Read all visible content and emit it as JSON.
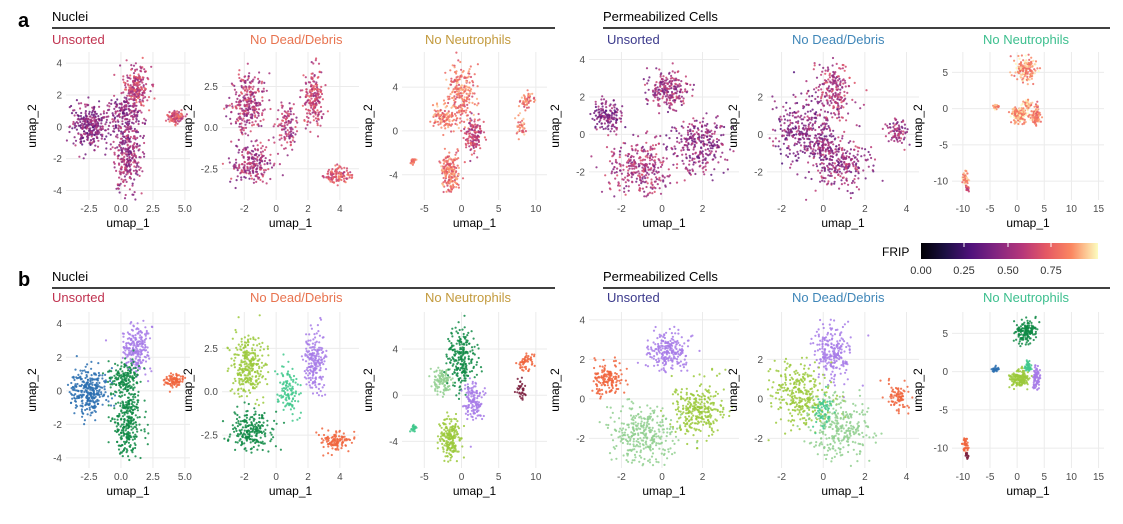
{
  "panel_labels": [
    "a",
    "b"
  ],
  "groups": {
    "left": "Nuclei",
    "right": "Permeabilized Cells"
  },
  "subplot_titles": [
    {
      "text": "Unsorted",
      "color": "#c0324f"
    },
    {
      "text": "No Dead/Debris",
      "color": "#e8734f"
    },
    {
      "text": "No Neutrophils",
      "color": "#c39a3d"
    },
    {
      "text": "Unsorted",
      "color": "#3c3a8c"
    },
    {
      "text": "No Dead/Debris",
      "color": "#3f86b8"
    },
    {
      "text": "No Neutrophils",
      "color": "#3cbf8e"
    }
  ],
  "legend": {
    "title": "FRIP",
    "ticks": [
      "0.00",
      "0.25",
      "0.50",
      "0.75"
    ],
    "range": [
      0,
      0.9
    ],
    "colormap": "magma"
  },
  "cluster_colors": [
    "#2a6fb0",
    "#0f8a45",
    "#a77be8",
    "#f0643c",
    "#9bc93b",
    "#90cf8f",
    "#3fc88c",
    "#7a1f3d"
  ],
  "chart_data": [
    {
      "type": "scatter",
      "row": "a",
      "group": "Nuclei",
      "title": "Unsorted",
      "xlabel": "umap_1",
      "ylabel": "umap_2",
      "xlim": [
        -4.3,
        5.4
      ],
      "ylim": [
        -4.6,
        4.7
      ],
      "xticks": [
        -2.5,
        0,
        2.5,
        5
      ],
      "xtick_labels": [
        "-2.5",
        "0.0",
        "2.5",
        "5.0"
      ],
      "yticks": [
        -4,
        -2,
        0,
        2,
        4
      ],
      "ytick_labels": [
        "-4",
        "-2",
        "0",
        "2",
        "4"
      ],
      "color_by": "FRIP",
      "blobs": [
        {
          "cx": 1.2,
          "cy": 2.5,
          "rx": 0.9,
          "ry": 1.2,
          "n": 220,
          "c": 3,
          "f": 0.55
        },
        {
          "cx": -2.5,
          "cy": 0,
          "rx": 1.3,
          "ry": 1.2,
          "n": 300,
          "c": 0,
          "f": 0.4
        },
        {
          "cx": 0.5,
          "cy": -1.8,
          "rx": 1.0,
          "ry": 2.0,
          "n": 300,
          "c": 1,
          "f": 0.45
        },
        {
          "cx": 0.3,
          "cy": 0.8,
          "rx": 1.1,
          "ry": 1.0,
          "n": 160,
          "c": 1,
          "f": 0.42
        },
        {
          "cx": 4.2,
          "cy": 0.6,
          "rx": 0.6,
          "ry": 0.35,
          "n": 90,
          "c": 3,
          "f": 0.6
        }
      ]
    },
    {
      "type": "scatter",
      "row": "a",
      "group": "Nuclei",
      "title": "No Dead/Debris",
      "xlabel": "umap_1",
      "ylabel": "umap_2",
      "xlim": [
        -3.4,
        5.2
      ],
      "ylim": [
        -4.4,
        4.6
      ],
      "xticks": [
        -2,
        0,
        2,
        4
      ],
      "xtick_labels": [
        "-2",
        "0",
        "2",
        "4"
      ],
      "yticks": [
        -2.5,
        0,
        2.5
      ],
      "ytick_labels": [
        "-2.5",
        "0.0",
        "2.5"
      ],
      "color_by": "FRIP",
      "blobs": [
        {
          "cx": -1.8,
          "cy": 1.5,
          "rx": 1.0,
          "ry": 1.6,
          "n": 280,
          "c": 4,
          "f": 0.5
        },
        {
          "cx": 2.4,
          "cy": 1.8,
          "rx": 0.6,
          "ry": 1.6,
          "n": 200,
          "c": 2,
          "f": 0.55
        },
        {
          "cx": -1.5,
          "cy": -2.2,
          "rx": 1.2,
          "ry": 1.0,
          "n": 220,
          "c": 1,
          "f": 0.48
        },
        {
          "cx": 0.7,
          "cy": 0.0,
          "rx": 0.6,
          "ry": 1.4,
          "n": 110,
          "c": 6,
          "f": 0.5
        },
        {
          "cx": 3.8,
          "cy": -2.9,
          "rx": 0.8,
          "ry": 0.5,
          "n": 110,
          "c": 3,
          "f": 0.62
        }
      ]
    },
    {
      "type": "scatter",
      "row": "a",
      "group": "Nuclei",
      "title": "No Neutrophils",
      "xlabel": "umap_1",
      "ylabel": "umap_2",
      "xlim": [
        -8,
        11.5
      ],
      "ylim": [
        -6.3,
        7.2
      ],
      "xticks": [
        -5,
        0,
        5,
        10
      ],
      "xtick_labels": [
        "-5",
        "0",
        "5",
        "10"
      ],
      "yticks": [
        -4,
        0,
        4
      ],
      "ytick_labels": [
        "-4",
        "0",
        "4"
      ],
      "color_by": "FRIP",
      "blobs": [
        {
          "cx": -1.5,
          "cy": -3.8,
          "rx": 1.2,
          "ry": 1.6,
          "n": 200,
          "c": 4,
          "f": 0.7
        },
        {
          "cx": -2.5,
          "cy": 1.2,
          "rx": 1.3,
          "ry": 1.0,
          "n": 110,
          "c": 5,
          "f": 0.72
        },
        {
          "cx": 0,
          "cy": 3.2,
          "rx": 1.7,
          "ry": 2.5,
          "n": 230,
          "c": 1,
          "f": 0.7
        },
        {
          "cx": 1.6,
          "cy": -0.5,
          "rx": 1.1,
          "ry": 1.5,
          "n": 140,
          "c": 2,
          "f": 0.55
        },
        {
          "cx": -6.5,
          "cy": -2.8,
          "rx": 0.4,
          "ry": 0.3,
          "n": 25,
          "c": 6,
          "f": 0.7
        },
        {
          "cx": 8.8,
          "cy": 2.8,
          "rx": 0.9,
          "ry": 0.6,
          "n": 50,
          "c": 3,
          "f": 0.7
        },
        {
          "cx": 8.0,
          "cy": 0.5,
          "rx": 0.6,
          "ry": 0.9,
          "n": 35,
          "c": 7,
          "f": 0.72
        }
      ]
    },
    {
      "type": "scatter",
      "row": "a",
      "group": "Permeabilized Cells",
      "title": "Unsorted",
      "xlabel": "umap_1",
      "ylabel": "umap_2",
      "xlim": [
        -3.6,
        3.8
      ],
      "ylim": [
        -3.5,
        4.4
      ],
      "xticks": [
        -2,
        0,
        2
      ],
      "xtick_labels": [
        "-2",
        "0",
        "2"
      ],
      "yticks": [
        -2,
        0,
        2,
        4
      ],
      "ytick_labels": [
        "-2",
        "0",
        "2",
        "4"
      ],
      "color_by": "FRIP",
      "blobs": [
        {
          "cx": 0.3,
          "cy": 2.4,
          "rx": 0.9,
          "ry": 0.9,
          "n": 220,
          "c": 2,
          "f": 0.45
        },
        {
          "cx": -2.7,
          "cy": 1.0,
          "rx": 0.7,
          "ry": 0.7,
          "n": 150,
          "c": 3,
          "f": 0.38
        },
        {
          "cx": 1.8,
          "cy": -0.6,
          "rx": 1.2,
          "ry": 1.3,
          "n": 280,
          "c": 4,
          "f": 0.42
        },
        {
          "cx": -1.0,
          "cy": -1.8,
          "rx": 1.5,
          "ry": 1.3,
          "n": 320,
          "c": 5,
          "f": 0.48
        }
      ]
    },
    {
      "type": "scatter",
      "row": "a",
      "group": "Permeabilized Cells",
      "title": "No Dead/Debris",
      "xlabel": "umap_1",
      "ylabel": "umap_2",
      "xlim": [
        -2.7,
        4.6
      ],
      "ylim": [
        -3.5,
        4.4
      ],
      "xticks": [
        -2,
        0,
        2,
        4
      ],
      "xtick_labels": [
        "-2",
        "0",
        "2",
        "4"
      ],
      "yticks": [
        -2,
        0,
        2
      ],
      "ytick_labels": [
        "-2",
        "0",
        "2"
      ],
      "color_by": "FRIP",
      "blobs": [
        {
          "cx": 0.5,
          "cy": 2.3,
          "rx": 0.8,
          "ry": 1.3,
          "n": 220,
          "c": 2,
          "f": 0.5
        },
        {
          "cx": -1.0,
          "cy": 0.2,
          "rx": 1.3,
          "ry": 1.5,
          "n": 300,
          "c": 4,
          "f": 0.4
        },
        {
          "cx": 0.8,
          "cy": -1.5,
          "rx": 1.3,
          "ry": 1.3,
          "n": 280,
          "c": 5,
          "f": 0.45
        },
        {
          "cx": 3.5,
          "cy": 0.1,
          "rx": 0.5,
          "ry": 0.6,
          "n": 80,
          "c": 3,
          "f": 0.45
        },
        {
          "cx": 0.0,
          "cy": -0.6,
          "rx": 0.4,
          "ry": 0.8,
          "n": 60,
          "c": 6,
          "f": 0.42
        }
      ]
    },
    {
      "type": "scatter",
      "row": "a",
      "group": "Permeabilized Cells",
      "title": "No Neutrophils",
      "xlabel": "umap_1",
      "ylabel": "umap_2",
      "xlim": [
        -12,
        16
      ],
      "ylim": [
        -12.6,
        7.8
      ],
      "xticks": [
        -10,
        -5,
        0,
        5,
        10,
        15
      ],
      "xtick_labels": [
        "-10",
        "-5",
        "0",
        "5",
        "10",
        "15"
      ],
      "yticks": [
        -10,
        -5,
        0,
        5
      ],
      "ytick_labels": [
        "-10",
        "-5",
        "0",
        "5"
      ],
      "color_by": "FRIP",
      "blobs": [
        {
          "cx": 1.5,
          "cy": 5.3,
          "rx": 1.8,
          "ry": 1.4,
          "n": 160,
          "c": 1,
          "f": 0.78
        },
        {
          "cx": 0.5,
          "cy": -0.9,
          "rx": 1.5,
          "ry": 1.0,
          "n": 160,
          "c": 4,
          "f": 0.8
        },
        {
          "cx": 3.5,
          "cy": -0.8,
          "rx": 0.7,
          "ry": 1.3,
          "n": 90,
          "c": 2,
          "f": 0.72
        },
        {
          "cx": -4.0,
          "cy": 0.3,
          "rx": 0.5,
          "ry": 0.3,
          "n": 25,
          "c": 0,
          "f": 0.78
        },
        {
          "cx": -9.5,
          "cy": -9.5,
          "rx": 0.6,
          "ry": 0.9,
          "n": 40,
          "c": 3,
          "f": 0.78
        },
        {
          "cx": -9.2,
          "cy": -11.0,
          "rx": 0.3,
          "ry": 0.4,
          "n": 15,
          "c": 7,
          "f": 0.6
        },
        {
          "cx": 2.0,
          "cy": 0.6,
          "rx": 0.6,
          "ry": 0.6,
          "n": 40,
          "c": 6,
          "f": 0.78
        }
      ]
    },
    {
      "type": "scatter",
      "row": "b",
      "group": "Nuclei",
      "title": "Unsorted",
      "xlabel": "umap_1",
      "ylabel": "umap_2",
      "xlim": [
        -4.3,
        5.4
      ],
      "ylim": [
        -4.6,
        4.7
      ],
      "xticks": [
        -2.5,
        0,
        2.5,
        5
      ],
      "xtick_labels": [
        "-2.5",
        "0.0",
        "2.5",
        "5.0"
      ],
      "yticks": [
        -4,
        -2,
        0,
        2,
        4
      ],
      "ytick_labels": [
        "-4",
        "-2",
        "0",
        "2",
        "4"
      ],
      "color_by": "cluster",
      "blobs": [
        {
          "cx": 1.2,
          "cy": 2.5,
          "rx": 0.9,
          "ry": 1.2,
          "n": 220,
          "c": 2,
          "f": 0.55
        },
        {
          "cx": -2.5,
          "cy": 0,
          "rx": 1.3,
          "ry": 1.2,
          "n": 300,
          "c": 0,
          "f": 0.4
        },
        {
          "cx": 0.5,
          "cy": -1.8,
          "rx": 1.0,
          "ry": 2.0,
          "n": 300,
          "c": 1,
          "f": 0.45
        },
        {
          "cx": 0.3,
          "cy": 0.8,
          "rx": 1.1,
          "ry": 1.0,
          "n": 160,
          "c": 1,
          "f": 0.42
        },
        {
          "cx": 4.2,
          "cy": 0.6,
          "rx": 0.6,
          "ry": 0.35,
          "n": 90,
          "c": 3,
          "f": 0.6
        }
      ]
    },
    {
      "type": "scatter",
      "row": "b",
      "group": "Nuclei",
      "title": "No Dead/Debris",
      "xlabel": "umap_1",
      "ylabel": "umap_2",
      "xlim": [
        -3.4,
        5.2
      ],
      "ylim": [
        -4.4,
        4.6
      ],
      "xticks": [
        -2,
        0,
        2,
        4
      ],
      "xtick_labels": [
        "-2",
        "0",
        "2",
        "4"
      ],
      "yticks": [
        -2.5,
        0,
        2.5
      ],
      "ytick_labels": [
        "-2.5",
        "0.0",
        "2.5"
      ],
      "color_by": "cluster",
      "blobs": [
        {
          "cx": -1.8,
          "cy": 1.5,
          "rx": 1.0,
          "ry": 1.6,
          "n": 280,
          "c": 4,
          "f": 0.5
        },
        {
          "cx": 2.4,
          "cy": 1.8,
          "rx": 0.6,
          "ry": 1.6,
          "n": 200,
          "c": 2,
          "f": 0.55
        },
        {
          "cx": -1.5,
          "cy": -2.2,
          "rx": 1.2,
          "ry": 1.0,
          "n": 220,
          "c": 1,
          "f": 0.48
        },
        {
          "cx": 0.7,
          "cy": 0.0,
          "rx": 0.6,
          "ry": 1.4,
          "n": 110,
          "c": 6,
          "f": 0.5
        },
        {
          "cx": 3.8,
          "cy": -2.9,
          "rx": 0.8,
          "ry": 0.5,
          "n": 110,
          "c": 3,
          "f": 0.62
        }
      ]
    },
    {
      "type": "scatter",
      "row": "b",
      "group": "Nuclei",
      "title": "No Neutrophils",
      "xlabel": "umap_1",
      "ylabel": "umap_2",
      "xlim": [
        -8,
        11.5
      ],
      "ylim": [
        -6.3,
        7.2
      ],
      "xticks": [
        -5,
        0,
        5,
        10
      ],
      "xtick_labels": [
        "-5",
        "0",
        "5",
        "10"
      ],
      "yticks": [
        -4,
        0,
        4
      ],
      "ytick_labels": [
        "-4",
        "0",
        "4"
      ],
      "color_by": "cluster",
      "blobs": [
        {
          "cx": -1.5,
          "cy": -3.8,
          "rx": 1.2,
          "ry": 1.6,
          "n": 200,
          "c": 4,
          "f": 0.7
        },
        {
          "cx": -2.5,
          "cy": 1.2,
          "rx": 1.3,
          "ry": 1.0,
          "n": 110,
          "c": 5,
          "f": 0.72
        },
        {
          "cx": 0,
          "cy": 3.2,
          "rx": 1.7,
          "ry": 2.5,
          "n": 230,
          "c": 1,
          "f": 0.7
        },
        {
          "cx": 1.6,
          "cy": -0.5,
          "rx": 1.1,
          "ry": 1.5,
          "n": 140,
          "c": 2,
          "f": 0.55
        },
        {
          "cx": -6.5,
          "cy": -2.8,
          "rx": 0.4,
          "ry": 0.3,
          "n": 25,
          "c": 6,
          "f": 0.7
        },
        {
          "cx": 8.8,
          "cy": 2.8,
          "rx": 0.9,
          "ry": 0.6,
          "n": 50,
          "c": 3,
          "f": 0.7
        },
        {
          "cx": 8.0,
          "cy": 0.5,
          "rx": 0.6,
          "ry": 0.9,
          "n": 35,
          "c": 7,
          "f": 0.72
        }
      ]
    },
    {
      "type": "scatter",
      "row": "b",
      "group": "Permeabilized Cells",
      "title": "Unsorted",
      "xlabel": "umap_1",
      "ylabel": "umap_2",
      "xlim": [
        -3.6,
        3.8
      ],
      "ylim": [
        -3.5,
        4.4
      ],
      "xticks": [
        -2,
        0,
        2
      ],
      "xtick_labels": [
        "-2",
        "0",
        "2"
      ],
      "yticks": [
        -2,
        0,
        2,
        4
      ],
      "ytick_labels": [
        "-2",
        "0",
        "2",
        "4"
      ],
      "color_by": "cluster",
      "blobs": [
        {
          "cx": 0.3,
          "cy": 2.4,
          "rx": 0.9,
          "ry": 0.9,
          "n": 220,
          "c": 2,
          "f": 0.45
        },
        {
          "cx": -2.7,
          "cy": 1.0,
          "rx": 0.7,
          "ry": 0.7,
          "n": 150,
          "c": 3,
          "f": 0.38
        },
        {
          "cx": 1.8,
          "cy": -0.6,
          "rx": 1.2,
          "ry": 1.3,
          "n": 280,
          "c": 4,
          "f": 0.42
        },
        {
          "cx": -1.0,
          "cy": -1.8,
          "rx": 1.5,
          "ry": 1.3,
          "n": 320,
          "c": 5,
          "f": 0.48
        }
      ]
    },
    {
      "type": "scatter",
      "row": "b",
      "group": "Permeabilized Cells",
      "title": "No Dead/Debris",
      "xlabel": "umap_1",
      "ylabel": "umap_2",
      "xlim": [
        -2.7,
        4.6
      ],
      "ylim": [
        -3.5,
        4.4
      ],
      "xticks": [
        -2,
        0,
        2,
        4
      ],
      "xtick_labels": [
        "-2",
        "0",
        "2",
        "4"
      ],
      "yticks": [
        -2,
        0,
        2
      ],
      "ytick_labels": [
        "-2",
        "0",
        "2"
      ],
      "color_by": "cluster",
      "blobs": [
        {
          "cx": 0.5,
          "cy": 2.3,
          "rx": 0.8,
          "ry": 1.3,
          "n": 220,
          "c": 2,
          "f": 0.5
        },
        {
          "cx": -1.0,
          "cy": 0.2,
          "rx": 1.3,
          "ry": 1.5,
          "n": 300,
          "c": 4,
          "f": 0.4
        },
        {
          "cx": 0.8,
          "cy": -1.5,
          "rx": 1.3,
          "ry": 1.3,
          "n": 280,
          "c": 5,
          "f": 0.45
        },
        {
          "cx": 3.5,
          "cy": 0.1,
          "rx": 0.5,
          "ry": 0.6,
          "n": 80,
          "c": 3,
          "f": 0.45
        },
        {
          "cx": 0.0,
          "cy": -0.6,
          "rx": 0.4,
          "ry": 0.8,
          "n": 60,
          "c": 6,
          "f": 0.42
        }
      ]
    },
    {
      "type": "scatter",
      "row": "b",
      "group": "Permeabilized Cells",
      "title": "No Neutrophils",
      "xlabel": "umap_1",
      "ylabel": "umap_2",
      "xlim": [
        -12,
        16
      ],
      "ylim": [
        -12.6,
        7.8
      ],
      "xticks": [
        -10,
        -5,
        0,
        5,
        10,
        15
      ],
      "xtick_labels": [
        "-10",
        "-5",
        "0",
        "5",
        "10",
        "15"
      ],
      "yticks": [
        -10,
        -5,
        0,
        5
      ],
      "ytick_labels": [
        "-10",
        "-5",
        "0",
        "5"
      ],
      "color_by": "cluster",
      "blobs": [
        {
          "cx": 1.5,
          "cy": 5.3,
          "rx": 1.8,
          "ry": 1.4,
          "n": 160,
          "c": 1,
          "f": 0.78
        },
        {
          "cx": 0.5,
          "cy": -0.9,
          "rx": 1.5,
          "ry": 1.0,
          "n": 160,
          "c": 4,
          "f": 0.8
        },
        {
          "cx": 3.5,
          "cy": -0.8,
          "rx": 0.7,
          "ry": 1.3,
          "n": 90,
          "c": 2,
          "f": 0.72
        },
        {
          "cx": -4.0,
          "cy": 0.3,
          "rx": 0.5,
          "ry": 0.3,
          "n": 25,
          "c": 0,
          "f": 0.78
        },
        {
          "cx": -9.5,
          "cy": -9.5,
          "rx": 0.6,
          "ry": 0.9,
          "n": 40,
          "c": 3,
          "f": 0.78
        },
        {
          "cx": -9.2,
          "cy": -11.0,
          "rx": 0.3,
          "ry": 0.4,
          "n": 15,
          "c": 7,
          "f": 0.6
        },
        {
          "cx": 2.0,
          "cy": 0.6,
          "rx": 0.6,
          "ry": 0.6,
          "n": 40,
          "c": 6,
          "f": 0.78
        }
      ]
    }
  ]
}
